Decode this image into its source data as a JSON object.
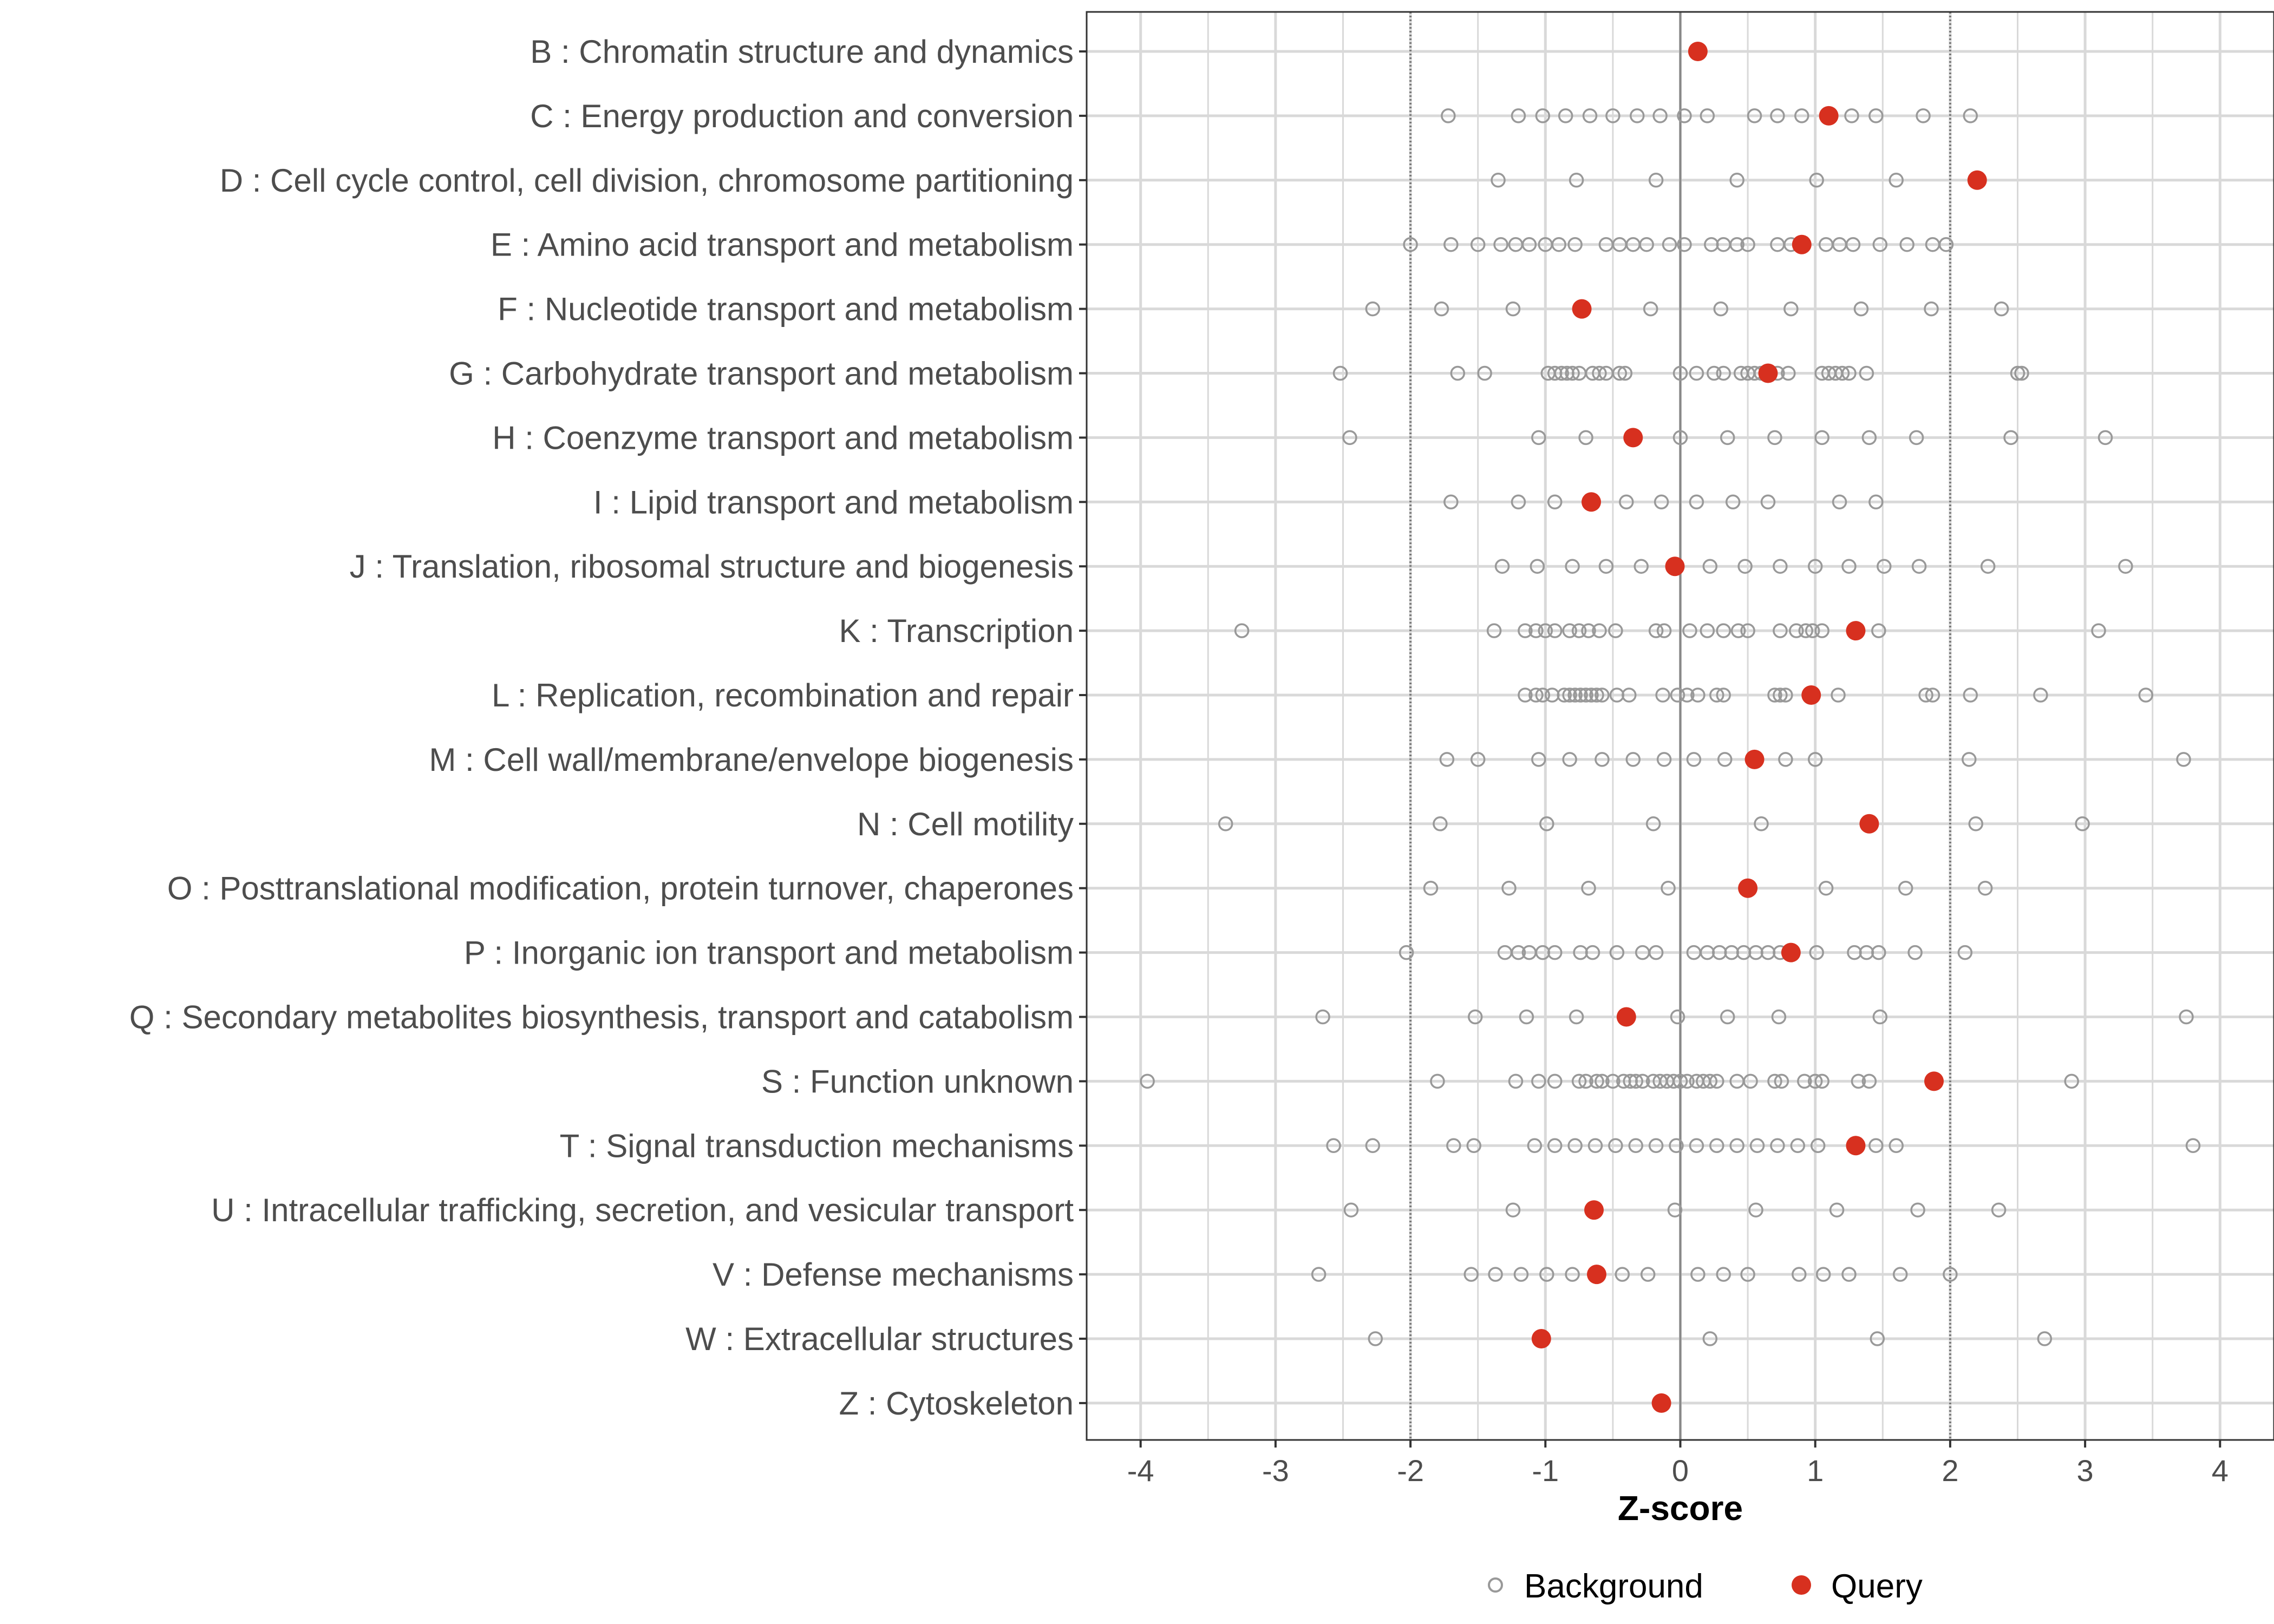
{
  "chart_data": {
    "type": "scatter",
    "title": "",
    "xlabel": "Z-score",
    "ylabel": "",
    "xlim": [
      -4.4,
      4.4
    ],
    "x_ticks": [
      "-4",
      "-3",
      "-2",
      "-1",
      "0",
      "1",
      "2",
      "3",
      "4"
    ],
    "threshold_lines": [
      -2,
      2
    ],
    "zero_line": 0,
    "grid": true,
    "colors": {
      "query": "#d7301f",
      "background": "#999999",
      "grid": "#d9d9d9",
      "zero_line": "#888888",
      "threshold": "#777777",
      "frame": "#333333"
    },
    "legend": {
      "position": "bottom",
      "entries": [
        {
          "name": "Background",
          "marker": "open-circle"
        },
        {
          "name": "Query",
          "marker": "filled-circle"
        }
      ]
    },
    "categories": [
      {
        "label": "B : Chromatin structure and dynamics",
        "query": 0.13,
        "background": []
      },
      {
        "label": "C : Energy production and conversion",
        "query": 1.1,
        "background": [
          -1.72,
          -1.2,
          -1.02,
          -0.85,
          -0.67,
          -0.5,
          -0.32,
          -0.15,
          0.03,
          0.2,
          0.55,
          0.72,
          0.9,
          1.27,
          1.45,
          1.8,
          2.15
        ]
      },
      {
        "label": "D : Cell cycle control, cell division, chromosome partitioning",
        "query": 2.2,
        "background": [
          -1.35,
          -0.77,
          -0.18,
          0.42,
          1.01,
          1.6
        ]
      },
      {
        "label": "E : Amino acid transport and metabolism",
        "query": 0.9,
        "background": [
          -2.0,
          -1.7,
          -1.5,
          -1.33,
          -1.22,
          -1.12,
          -1.0,
          -0.9,
          -0.78,
          -0.55,
          -0.45,
          -0.35,
          -0.25,
          -0.08,
          0.03,
          0.23,
          0.32,
          0.42,
          0.5,
          0.72,
          0.82,
          1.08,
          1.18,
          1.28,
          1.48,
          1.68,
          1.87,
          1.97
        ]
      },
      {
        "label": "F : Nucleotide transport and metabolism",
        "query": -0.73,
        "background": [
          -2.28,
          -1.77,
          -1.24,
          -0.22,
          0.3,
          0.82,
          1.34,
          1.86,
          2.38
        ]
      },
      {
        "label": "G : Carbohydrate transport and metabolism",
        "query": 0.65,
        "background": [
          -2.52,
          -1.65,
          -1.45,
          -0.98,
          -0.93,
          -0.88,
          -0.84,
          -0.8,
          -0.75,
          -0.65,
          -0.6,
          -0.55,
          -0.45,
          -0.41,
          0.0,
          0.12,
          0.25,
          0.32,
          0.45,
          0.5,
          0.55,
          0.6,
          0.72,
          0.8,
          1.05,
          1.1,
          1.15,
          1.2,
          1.25,
          1.38,
          2.5,
          2.53
        ]
      },
      {
        "label": "H : Coenzyme transport and metabolism",
        "query": -0.35,
        "background": [
          -2.45,
          -1.05,
          -0.7,
          0.0,
          0.35,
          0.7,
          1.05,
          1.4,
          1.75,
          2.45,
          3.15
        ]
      },
      {
        "label": "I : Lipid transport and metabolism",
        "query": -0.66,
        "background": [
          -1.7,
          -1.2,
          -0.93,
          -0.4,
          -0.14,
          0.12,
          0.39,
          0.65,
          1.18,
          1.45
        ]
      },
      {
        "label": "J : Translation, ribosomal structure and biogenesis",
        "query": -0.04,
        "background": [
          -1.32,
          -1.06,
          -0.8,
          -0.55,
          -0.29,
          0.22,
          0.48,
          0.74,
          1.0,
          1.25,
          1.51,
          1.77,
          2.28,
          3.3
        ]
      },
      {
        "label": "K : Transcription",
        "query": 1.3,
        "background": [
          -3.25,
          -1.38,
          -1.15,
          -1.07,
          -1.0,
          -0.93,
          -0.82,
          -0.75,
          -0.68,
          -0.6,
          -0.48,
          -0.18,
          -0.12,
          0.07,
          0.2,
          0.32,
          0.43,
          0.5,
          0.74,
          0.86,
          0.93,
          0.98,
          1.05,
          1.47,
          3.1
        ]
      },
      {
        "label": "L : Replication, recombination and repair",
        "query": 0.97,
        "background": [
          -1.15,
          -1.07,
          -1.02,
          -0.95,
          -0.86,
          -0.82,
          -0.78,
          -0.74,
          -0.7,
          -0.66,
          -0.62,
          -0.58,
          -0.47,
          -0.38,
          -0.13,
          -0.02,
          0.05,
          0.13,
          0.27,
          0.32,
          0.7,
          0.74,
          0.78,
          1.17,
          1.82,
          1.87,
          2.15,
          2.67,
          3.45
        ]
      },
      {
        "label": "M : Cell wall/membrane/envelope biogenesis",
        "query": 0.55,
        "background": [
          -1.73,
          -1.5,
          -1.05,
          -0.82,
          -0.58,
          -0.35,
          -0.12,
          0.1,
          0.33,
          0.78,
          1.0,
          2.14,
          3.73
        ]
      },
      {
        "label": "N : Cell motility",
        "query": 1.4,
        "background": [
          -3.37,
          -1.78,
          -0.99,
          -0.2,
          0.6,
          2.19,
          2.98
        ]
      },
      {
        "label": "O : Posttranslational modification, protein turnover, chaperones",
        "query": 0.5,
        "background": [
          -1.85,
          -1.27,
          -0.68,
          -0.09,
          1.08,
          1.67,
          2.26
        ]
      },
      {
        "label": "P : Inorganic ion transport and metabolism",
        "query": 0.82,
        "background": [
          -2.03,
          -1.3,
          -1.2,
          -1.12,
          -1.02,
          -0.93,
          -0.74,
          -0.65,
          -0.47,
          -0.28,
          -0.18,
          0.1,
          0.2,
          0.29,
          0.38,
          0.47,
          0.56,
          0.65,
          0.74,
          1.01,
          1.29,
          1.38,
          1.47,
          1.74,
          2.11
        ]
      },
      {
        "label": "Q : Secondary metabolites biosynthesis, transport and catabolism",
        "query": -0.4,
        "background": [
          -2.65,
          -1.52,
          -1.14,
          -0.77,
          -0.02,
          0.35,
          0.73,
          1.48,
          3.75
        ]
      },
      {
        "label": "S : Function unknown",
        "query": 1.88,
        "background": [
          -3.95,
          -1.8,
          -1.22,
          -1.05,
          -0.93,
          -0.75,
          -0.7,
          -0.62,
          -0.58,
          -0.5,
          -0.42,
          -0.37,
          -0.33,
          -0.28,
          -0.2,
          -0.15,
          -0.1,
          -0.05,
          0.0,
          0.05,
          0.12,
          0.17,
          0.22,
          0.27,
          0.42,
          0.52,
          0.7,
          0.75,
          0.92,
          1.0,
          1.05,
          1.32,
          1.4,
          2.9
        ]
      },
      {
        "label": "T : Signal transduction mechanisms",
        "query": 1.3,
        "background": [
          -2.57,
          -2.28,
          -1.68,
          -1.53,
          -1.08,
          -0.93,
          -0.78,
          -0.63,
          -0.48,
          -0.33,
          -0.18,
          -0.03,
          0.12,
          0.27,
          0.42,
          0.57,
          0.72,
          0.87,
          1.02,
          1.45,
          1.6,
          3.8
        ]
      },
      {
        "label": "U : Intracellular trafficking, secretion, and vesicular transport",
        "query": -0.64,
        "background": [
          -2.44,
          -1.24,
          -0.04,
          0.56,
          1.16,
          1.76,
          2.36
        ]
      },
      {
        "label": "V : Defense mechanisms",
        "query": -0.62,
        "background": [
          -2.68,
          -1.55,
          -1.37,
          -1.18,
          -0.99,
          -0.8,
          -0.43,
          -0.24,
          0.13,
          0.32,
          0.5,
          0.88,
          1.06,
          1.25,
          1.63,
          2.0
        ]
      },
      {
        "label": "W : Extracellular structures",
        "query": -1.03,
        "background": [
          -2.26,
          0.22,
          1.46,
          2.7
        ]
      },
      {
        "label": "Z : Cytoskeleton",
        "query": -0.14,
        "background": []
      }
    ]
  }
}
